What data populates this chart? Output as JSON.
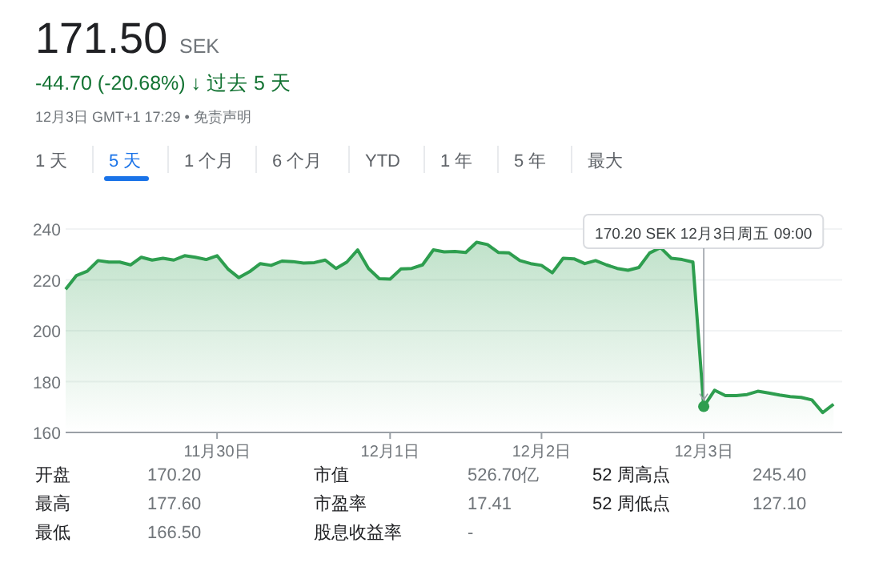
{
  "chart_data": [
    {
      "type": "other",
      "title": "171.50",
      "annotations": [
        "SEK",
        "-44.70 (-20.68%) ↓ 过去 5 天",
        "12月3日 GMT+1 17:29 • 免责声明",
        "1 天",
        "5 天",
        "1 个月",
        "6 个月",
        "YTD",
        "1 年",
        "5 年",
        "最大"
      ]
    },
    {
      "type": "area",
      "color": "#2e9e4f",
      "categories": [
        null,
        null,
        null,
        null,
        null,
        null,
        null,
        null,
        null,
        null,
        null,
        null,
        null,
        null,
        "11月30日",
        null,
        null,
        null,
        null,
        null,
        null,
        null,
        null,
        null,
        null,
        null,
        null,
        null,
        null,
        null,
        "12月1日",
        null,
        null,
        null,
        null,
        null,
        null,
        null,
        null,
        null,
        null,
        null,
        null,
        null,
        "12月2日",
        null,
        null,
        null,
        null,
        null,
        null,
        null,
        null,
        null,
        null,
        null,
        null,
        null,
        null,
        "12月3日",
        null,
        null,
        null,
        null,
        null,
        null,
        null,
        null,
        null,
        null,
        null,
        null
      ],
      "values": [
        216.3,
        221.7,
        223.4,
        227.6,
        227.0,
        227.0,
        225.9,
        228.9,
        227.8,
        228.5,
        227.8,
        229.5,
        228.9,
        228.0,
        229.5,
        224.3,
        220.9,
        223.2,
        226.4,
        225.7,
        227.4,
        227.2,
        226.6,
        226.8,
        227.8,
        224.5,
        227.0,
        231.8,
        224.5,
        220.5,
        220.3,
        224.3,
        224.5,
        225.9,
        231.8,
        231.0,
        231.2,
        230.8,
        234.8,
        233.9,
        230.8,
        230.6,
        227.6,
        226.4,
        225.7,
        222.8,
        228.5,
        228.3,
        226.4,
        227.6,
        225.9,
        224.5,
        223.8,
        224.9,
        230.6,
        232.7,
        228.5,
        228.0,
        227.0,
        170.2,
        176.6,
        174.5,
        174.5,
        174.9,
        176.2,
        175.5,
        174.7,
        174.1,
        173.8,
        172.8,
        167.8,
        171.1
      ],
      "ylim": [
        160,
        240
      ],
      "yticks": [
        160,
        180,
        200,
        220,
        240
      ],
      "grid": "y",
      "marker": "none",
      "line_style": "solid",
      "legend": false,
      "annotations": [
        {
          "text": "170.20 SEK  12月3日周五 09:00",
          "x": "12月3日",
          "y": 170.2
        }
      ]
    },
    {
      "type": "other",
      "annotations": [
        "开盘",
        "170.20",
        "市值",
        "526.70亿",
        "52 周高点",
        "245.40",
        "最高",
        "177.60",
        "市盈率",
        "17.41",
        "52 周低点",
        "127.10",
        "最低",
        "166.50",
        "股息收益率",
        "-"
      ]
    }
  ]
}
